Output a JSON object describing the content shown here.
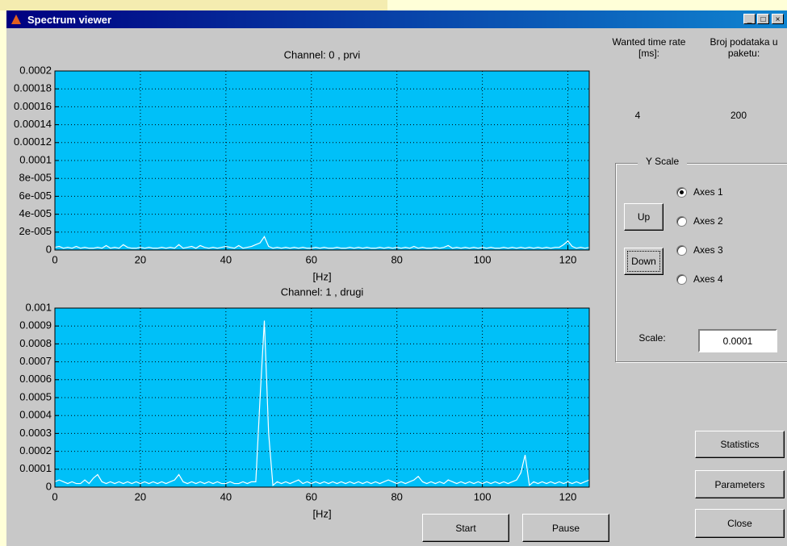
{
  "window": {
    "title": "Spectrum viewer"
  },
  "controls": {
    "time_rate_label": "Wanted time rate [ms]:",
    "time_rate_value": "4",
    "packet_label": "Broj podataka u paketu:",
    "packet_value": "200",
    "yscale_title": "Y Scale",
    "radios": [
      {
        "label": "Axes 1",
        "checked": true
      },
      {
        "label": "Axes 2",
        "checked": false
      },
      {
        "label": "Axes 3",
        "checked": false
      },
      {
        "label": "Axes 4",
        "checked": false
      }
    ],
    "up": "Up",
    "down": "Down",
    "scale_label": "Scale:",
    "scale_value": "0.0001",
    "statistics": "Statistics",
    "parameters": "Parameters",
    "close": "Close",
    "start": "Start",
    "pause": "Pause"
  },
  "chart_data": [
    {
      "type": "line",
      "title": "Channel: 0 ,  prvi",
      "x_label": "[Hz]",
      "color": "#ffffff",
      "facecolor": "#00c0f8",
      "grid": true,
      "xlim": [
        0,
        125
      ],
      "xticks": [
        0,
        20,
        40,
        60,
        80,
        100,
        120
      ],
      "ylim": [
        0,
        0.0002
      ],
      "yticks": [
        0,
        {
          "value": 2e-05,
          "label": "2e-005"
        },
        {
          "value": 4e-05,
          "label": "4e-005"
        },
        {
          "value": 6e-05,
          "label": "6e-005"
        },
        {
          "value": 8e-05,
          "label": "8e-005"
        },
        0.0001,
        0.00012,
        0.00014,
        0.00016,
        0.00018,
        0.0002
      ],
      "x": [
        0,
        1,
        2,
        3,
        4,
        5,
        6,
        7,
        8,
        9,
        10,
        11,
        12,
        13,
        14,
        15,
        16,
        17,
        18,
        19,
        20,
        21,
        22,
        23,
        24,
        25,
        26,
        27,
        28,
        29,
        30,
        31,
        32,
        33,
        34,
        35,
        36,
        37,
        38,
        39,
        40,
        41,
        42,
        43,
        44,
        45,
        46,
        47,
        48,
        49,
        50,
        51,
        52,
        53,
        54,
        55,
        56,
        57,
        58,
        59,
        60,
        61,
        62,
        63,
        64,
        65,
        66,
        67,
        68,
        69,
        70,
        71,
        72,
        73,
        74,
        75,
        76,
        77,
        78,
        79,
        80,
        81,
        82,
        83,
        84,
        85,
        86,
        87,
        88,
        89,
        90,
        91,
        92,
        93,
        94,
        95,
        96,
        97,
        98,
        99,
        100,
        101,
        102,
        103,
        104,
        105,
        106,
        107,
        108,
        109,
        110,
        111,
        112,
        113,
        114,
        115,
        116,
        117,
        118,
        119,
        120,
        121,
        122,
        123,
        124,
        125
      ],
      "values": [
        3e-06,
        4e-06,
        2e-06,
        3e-06,
        2e-06,
        4e-06,
        2e-06,
        3e-06,
        2e-06,
        2e-06,
        3e-06,
        2e-06,
        5e-06,
        2e-06,
        3e-06,
        2e-06,
        6e-06,
        3e-06,
        2e-06,
        2e-06,
        3e-06,
        2e-06,
        3e-06,
        2e-06,
        2e-06,
        3e-06,
        2e-06,
        3e-06,
        2e-06,
        6e-06,
        2e-06,
        3e-06,
        4e-06,
        2e-06,
        5e-06,
        3e-06,
        2e-06,
        3e-06,
        2e-06,
        3e-06,
        4e-06,
        3e-06,
        2e-06,
        5e-06,
        2e-06,
        3e-06,
        4e-06,
        6e-06,
        8e-06,
        1.5e-05,
        4e-06,
        2e-06,
        3e-06,
        2e-06,
        3e-06,
        2e-06,
        3e-06,
        2e-06,
        3e-06,
        2e-06,
        2e-06,
        3e-06,
        2e-06,
        3e-06,
        2e-06,
        2e-06,
        3e-06,
        2e-06,
        2e-06,
        3e-06,
        2e-06,
        3e-06,
        2e-06,
        3e-06,
        2e-06,
        2e-06,
        3e-06,
        2e-06,
        3e-06,
        2e-06,
        3e-06,
        2e-06,
        3e-06,
        2e-06,
        4e-06,
        2e-06,
        3e-06,
        2e-06,
        2e-06,
        3e-06,
        2e-06,
        3e-06,
        5e-06,
        2e-06,
        3e-06,
        2e-06,
        3e-06,
        2e-06,
        3e-06,
        2e-06,
        3e-06,
        2e-06,
        3e-06,
        2e-06,
        2e-06,
        3e-06,
        2e-06,
        3e-06,
        2e-06,
        3e-06,
        2e-06,
        3e-06,
        2e-06,
        3e-06,
        2e-06,
        3e-06,
        2e-06,
        3e-06,
        3e-06,
        6e-06,
        1e-05,
        4e-06,
        2e-06,
        3e-06,
        2e-06,
        3e-06
      ]
    },
    {
      "type": "line",
      "title": "Channel: 1 ,  drugi",
      "x_label": "[Hz]",
      "color": "#ffffff",
      "facecolor": "#00c0f8",
      "grid": true,
      "xlim": [
        0,
        125
      ],
      "xticks": [
        0,
        20,
        40,
        60,
        80,
        100,
        120
      ],
      "ylim": [
        0,
        0.001
      ],
      "yticks": [
        0,
        0.0001,
        0.0002,
        0.0003,
        0.0004,
        0.0005,
        0.0006,
        0.0007,
        0.0008,
        0.0009,
        0.001
      ],
      "x": [
        0,
        1,
        2,
        3,
        4,
        5,
        6,
        7,
        8,
        9,
        10,
        11,
        12,
        13,
        14,
        15,
        16,
        17,
        18,
        19,
        20,
        21,
        22,
        23,
        24,
        25,
        26,
        27,
        28,
        29,
        30,
        31,
        32,
        33,
        34,
        35,
        36,
        37,
        38,
        39,
        40,
        41,
        42,
        43,
        44,
        45,
        46,
        47,
        48,
        49,
        50,
        51,
        52,
        53,
        54,
        55,
        56,
        57,
        58,
        59,
        60,
        61,
        62,
        63,
        64,
        65,
        66,
        67,
        68,
        69,
        70,
        71,
        72,
        73,
        74,
        75,
        76,
        77,
        78,
        79,
        80,
        81,
        82,
        83,
        84,
        85,
        86,
        87,
        88,
        89,
        90,
        91,
        92,
        93,
        94,
        95,
        96,
        97,
        98,
        99,
        100,
        101,
        102,
        103,
        104,
        105,
        106,
        107,
        108,
        109,
        110,
        111,
        112,
        113,
        114,
        115,
        116,
        117,
        118,
        119,
        120,
        121,
        122,
        123,
        124,
        125
      ],
      "values": [
        3e-05,
        4e-05,
        3e-05,
        2e-05,
        3e-05,
        2e-05,
        2e-05,
        4e-05,
        2e-05,
        5e-05,
        7e-05,
        3e-05,
        2e-05,
        3e-05,
        2e-05,
        3e-05,
        2e-05,
        3e-05,
        2e-05,
        3e-05,
        2e-05,
        3e-05,
        2e-05,
        3e-05,
        2e-05,
        3e-05,
        2e-05,
        3e-05,
        4e-05,
        7e-05,
        3e-05,
        2e-05,
        3e-05,
        2e-05,
        3e-05,
        2e-05,
        3e-05,
        2e-05,
        3e-05,
        2e-05,
        2e-05,
        3e-05,
        2e-05,
        2e-05,
        3e-05,
        2e-05,
        3e-05,
        3e-05,
        0.0005,
        0.00093,
        0.0003,
        1e-05,
        3e-05,
        2e-05,
        3e-05,
        2e-05,
        3e-05,
        4e-05,
        2e-05,
        3e-05,
        2e-05,
        3e-05,
        2e-05,
        3e-05,
        2e-05,
        3e-05,
        2e-05,
        3e-05,
        2e-05,
        3e-05,
        2e-05,
        3e-05,
        2e-05,
        3e-05,
        2e-05,
        3e-05,
        2e-05,
        3e-05,
        4e-05,
        3e-05,
        2e-05,
        3e-05,
        2e-05,
        3e-05,
        4e-05,
        6e-05,
        3e-05,
        2e-05,
        3e-05,
        2e-05,
        3e-05,
        2e-05,
        4e-05,
        3e-05,
        2e-05,
        3e-05,
        2e-05,
        3e-05,
        2e-05,
        3e-05,
        2e-05,
        3e-05,
        2e-05,
        3e-05,
        2e-05,
        3e-05,
        2e-05,
        3e-05,
        4e-05,
        8e-05,
        0.00018,
        1e-05,
        3e-05,
        2e-05,
        3e-05,
        2e-05,
        3e-05,
        2e-05,
        3e-05,
        2e-05,
        3e-05,
        2e-05,
        3e-05,
        2e-05,
        3e-05,
        4e-05
      ]
    }
  ]
}
